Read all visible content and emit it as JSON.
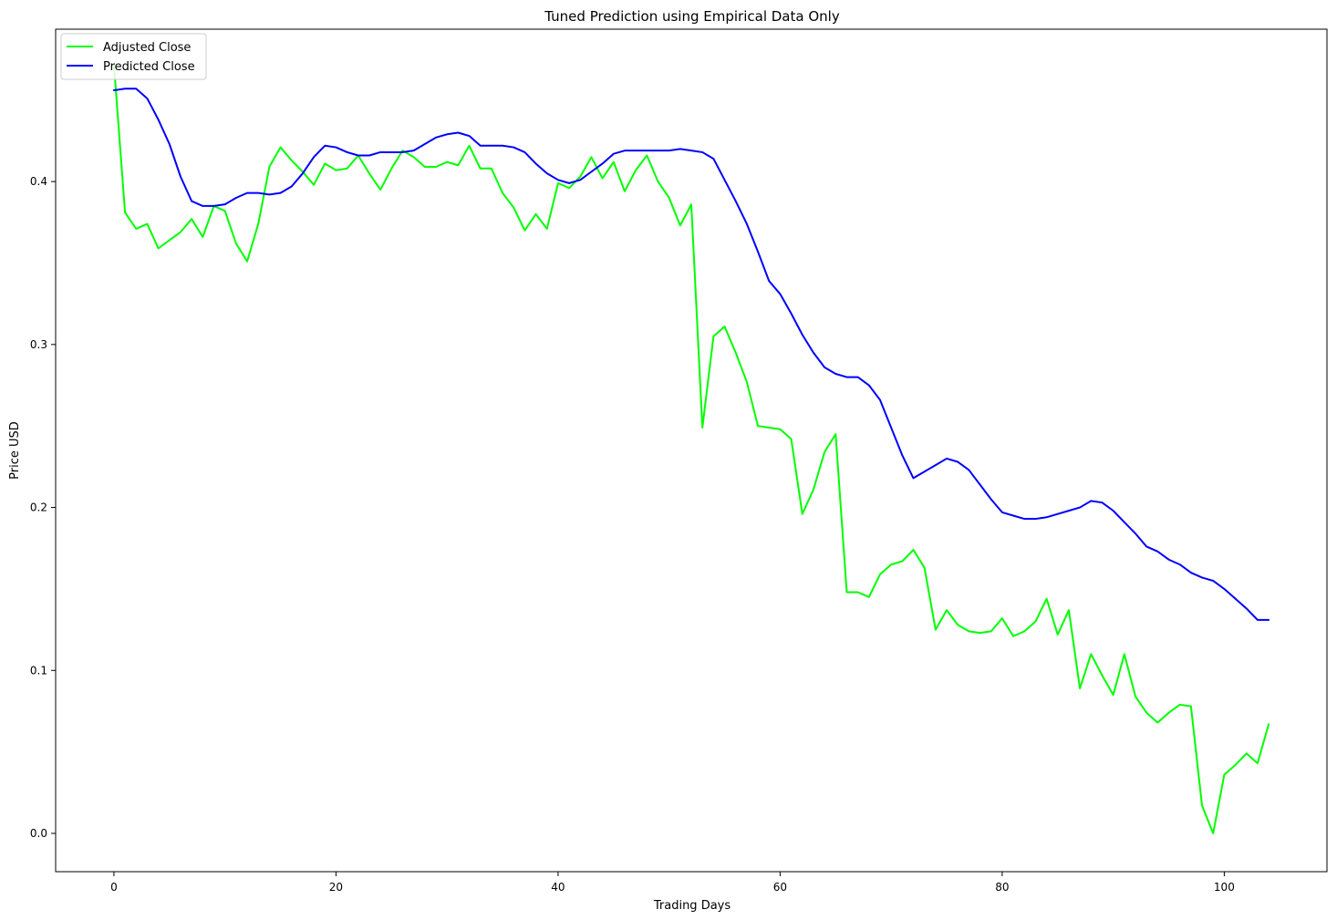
{
  "chart_data": {
    "type": "line",
    "title": "Tuned Prediction using Empirical Data Only",
    "xlabel": "Trading Days",
    "ylabel": "Price USD",
    "xlim": [
      -5.25,
      109.25
    ],
    "ylim": [
      -0.0235,
      0.4935
    ],
    "xticks": [
      0,
      20,
      40,
      60,
      80,
      100
    ],
    "yticks": [
      0.0,
      0.1,
      0.2,
      0.3,
      0.4
    ],
    "grid": false,
    "legend_position": "top-left",
    "series": [
      {
        "name": "Adjusted Close",
        "color": "#00ff00",
        "x": [
          0,
          1,
          2,
          3,
          4,
          5,
          6,
          7,
          8,
          9,
          10,
          11,
          12,
          13,
          14,
          15,
          16,
          17,
          18,
          19,
          20,
          21,
          22,
          23,
          24,
          25,
          26,
          27,
          28,
          29,
          30,
          31,
          32,
          33,
          34,
          35,
          36,
          37,
          38,
          39,
          40,
          41,
          42,
          43,
          44,
          45,
          46,
          47,
          48,
          49,
          50,
          51,
          52,
          53,
          54,
          55,
          56,
          57,
          58,
          59,
          60,
          61,
          62,
          63,
          64,
          65,
          66,
          67,
          68,
          69,
          70,
          71,
          72,
          73,
          74,
          75,
          76,
          77,
          78,
          79,
          80,
          81,
          82,
          83,
          84,
          85,
          86,
          87,
          88,
          89,
          90,
          91,
          92,
          93,
          94,
          95,
          96,
          97,
          98,
          99,
          100,
          101,
          102,
          103,
          104
        ],
        "values": [
          0.472,
          0.381,
          0.371,
          0.374,
          0.359,
          0.364,
          0.369,
          0.377,
          0.366,
          0.385,
          0.382,
          0.362,
          0.351,
          0.374,
          0.409,
          0.421,
          0.413,
          0.406,
          0.398,
          0.411,
          0.407,
          0.408,
          0.416,
          0.405,
          0.395,
          0.408,
          0.419,
          0.415,
          0.409,
          0.409,
          0.412,
          0.41,
          0.422,
          0.408,
          0.408,
          0.393,
          0.384,
          0.37,
          0.38,
          0.371,
          0.399,
          0.396,
          0.403,
          0.415,
          0.402,
          0.412,
          0.394,
          0.407,
          0.416,
          0.4,
          0.39,
          0.373,
          0.386,
          0.249,
          0.305,
          0.311,
          0.295,
          0.277,
          0.25,
          0.249,
          0.248,
          0.242,
          0.196,
          0.211,
          0.234,
          0.245,
          0.148,
          0.148,
          0.145,
          0.159,
          0.165,
          0.167,
          0.174,
          0.163,
          0.125,
          0.137,
          0.128,
          0.124,
          0.123,
          0.124,
          0.132,
          0.121,
          0.124,
          0.13,
          0.144,
          0.122,
          0.137,
          0.089,
          0.11,
          0.097,
          0.085,
          0.11,
          0.084,
          0.074,
          0.068,
          0.074,
          0.079,
          0.078,
          0.017,
          0.0,
          0.036,
          0.042,
          0.049,
          0.043,
          0.067
        ]
      },
      {
        "name": "Predicted Close",
        "color": "#0000ff",
        "x": [
          0,
          1,
          2,
          3,
          4,
          5,
          6,
          7,
          8,
          9,
          10,
          11,
          12,
          13,
          14,
          15,
          16,
          17,
          18,
          19,
          20,
          21,
          22,
          23,
          24,
          25,
          26,
          27,
          28,
          29,
          30,
          31,
          32,
          33,
          34,
          35,
          36,
          37,
          38,
          39,
          40,
          41,
          42,
          43,
          44,
          45,
          46,
          47,
          48,
          49,
          50,
          51,
          52,
          53,
          54,
          55,
          56,
          57,
          58,
          59,
          60,
          61,
          62,
          63,
          64,
          65,
          66,
          67,
          68,
          69,
          70,
          71,
          72,
          73,
          74,
          75,
          76,
          77,
          78,
          79,
          80,
          81,
          82,
          83,
          84,
          85,
          86,
          87,
          88,
          89,
          90,
          91,
          92,
          93,
          94,
          95,
          96,
          97,
          98,
          99,
          100,
          101,
          102,
          103,
          104
        ],
        "values": [
          0.456,
          0.457,
          0.457,
          0.451,
          0.438,
          0.423,
          0.403,
          0.388,
          0.385,
          0.385,
          0.386,
          0.39,
          0.393,
          0.393,
          0.392,
          0.393,
          0.397,
          0.405,
          0.415,
          0.422,
          0.421,
          0.418,
          0.416,
          0.416,
          0.418,
          0.418,
          0.418,
          0.419,
          0.423,
          0.427,
          0.429,
          0.43,
          0.428,
          0.422,
          0.422,
          0.422,
          0.421,
          0.418,
          0.411,
          0.405,
          0.401,
          0.399,
          0.401,
          0.406,
          0.411,
          0.417,
          0.419,
          0.419,
          0.419,
          0.419,
          0.419,
          0.42,
          0.419,
          0.418,
          0.414,
          0.401,
          0.388,
          0.374,
          0.357,
          0.339,
          0.331,
          0.319,
          0.306,
          0.295,
          0.286,
          0.282,
          0.28,
          0.28,
          0.275,
          0.266,
          0.249,
          0.232,
          0.218,
          0.222,
          0.226,
          0.23,
          0.228,
          0.223,
          0.214,
          0.205,
          0.197,
          0.195,
          0.193,
          0.193,
          0.194,
          0.196,
          0.198,
          0.2,
          0.204,
          0.203,
          0.198,
          0.191,
          0.184,
          0.176,
          0.173,
          0.168,
          0.165,
          0.16,
          0.157,
          0.155,
          0.15,
          0.144,
          0.138,
          0.131,
          0.131
        ]
      }
    ]
  }
}
